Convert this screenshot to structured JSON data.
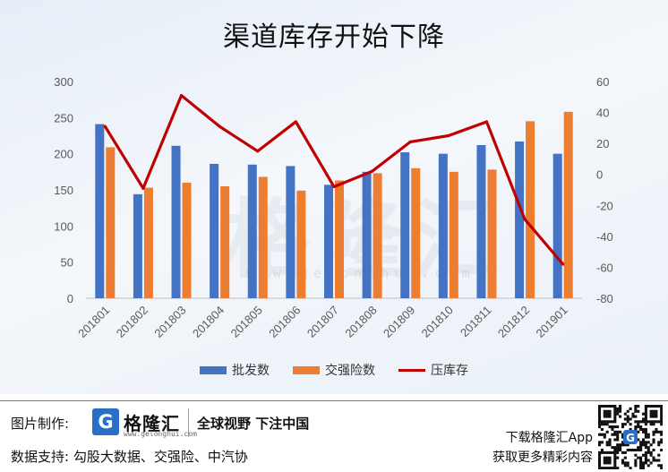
{
  "title": "渠道库存开始下降",
  "watermark": "格隆汇",
  "watermark_url": "www.gelonghui.com",
  "footer": {
    "credit_label": "图片制作:",
    "logo_char": "G",
    "logo_name": "格隆汇",
    "logo_url": "www.gelonghui.com",
    "slogan": "全球视野 下注中国",
    "source": "数据支持: 勾股大数据、交强险、中汽协",
    "app_line1": "下载格隆汇App",
    "app_line2": "获取更多精彩内容"
  },
  "colors": {
    "series_wholesale": "#4472c4",
    "series_insurance": "#ed7d31",
    "series_inventory": "#c00000",
    "axis_text": "#595959",
    "gridline": "#d9d9d9"
  },
  "chart_data": {
    "type": "bar",
    "title": "渠道库存开始下降",
    "categories": [
      "201801",
      "201802",
      "201803",
      "201804",
      "201805",
      "201806",
      "201807",
      "201808",
      "201809",
      "201810",
      "201811",
      "201812",
      "201901"
    ],
    "series": [
      {
        "name": "批发数",
        "type": "bar",
        "axis": "left",
        "values": [
          241,
          144,
          211,
          186,
          185,
          183,
          157,
          175,
          202,
          200,
          212,
          217,
          200
        ]
      },
      {
        "name": "交强险数",
        "type": "bar",
        "axis": "left",
        "values": [
          209,
          153,
          160,
          155,
          168,
          149,
          163,
          173,
          180,
          175,
          178,
          245,
          258
        ]
      },
      {
        "name": "压库存",
        "type": "line",
        "axis": "right",
        "values": [
          31,
          -9,
          51,
          31,
          15,
          34,
          -8,
          2,
          21,
          25,
          34,
          -29,
          -58
        ]
      }
    ],
    "y_left": {
      "min": 0,
      "max": 300,
      "ticks": [
        0,
        50,
        100,
        150,
        200,
        250,
        300
      ]
    },
    "y_right": {
      "min": -80,
      "max": 60,
      "ticks": [
        -80,
        -60,
        -40,
        -20,
        0,
        20,
        40,
        60
      ]
    },
    "xlabel": "",
    "ylabel": "",
    "grid": false,
    "legend": "bottom"
  }
}
